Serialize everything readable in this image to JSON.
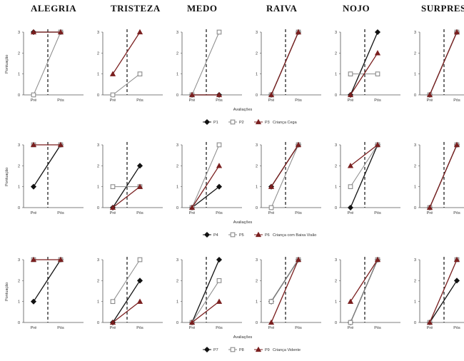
{
  "headers": [
    "ALEGRIA",
    "TRISTEZA",
    "MEDO",
    "RAIVA",
    "NOJO",
    "SURPRESA"
  ],
  "chart_data": {
    "type": "line",
    "categories": [
      "Pré",
      "Pós"
    ],
    "ylim": [
      0,
      3
    ],
    "yticks": [
      0,
      1,
      2,
      3
    ],
    "ylabel": "Pontuação",
    "xlabel": "Avaliações",
    "colors": {
      "black": "#111111",
      "gray": "#8a8a8a",
      "red": "#7a1f1f"
    },
    "rows": [
      {
        "legend": {
          "items": [
            "P1",
            "P2",
            "P3"
          ],
          "group": "Criança Cega"
        },
        "series": [
          {
            "name": "P1",
            "color": "black",
            "marker": "diamond"
          },
          {
            "name": "P2",
            "color": "gray",
            "marker": "square"
          },
          {
            "name": "P3",
            "color": "red",
            "marker": "triangle"
          }
        ],
        "panels": [
          {
            "emotion": "ALEGRIA",
            "values": [
              [
                3,
                3
              ],
              [
                0,
                3
              ],
              [
                3,
                3
              ]
            ]
          },
          {
            "emotion": "TRISTEZA",
            "values": [
              [
                null,
                null
              ],
              [
                0,
                1
              ],
              [
                1,
                3
              ]
            ]
          },
          {
            "emotion": "MEDO",
            "values": [
              [
                0,
                0
              ],
              [
                0,
                3
              ],
              [
                0,
                0
              ]
            ]
          },
          {
            "emotion": "RAIVA",
            "values": [
              [
                0,
                3
              ],
              [
                0,
                3
              ],
              [
                0,
                3
              ]
            ]
          },
          {
            "emotion": "NOJO",
            "values": [
              [
                0,
                3
              ],
              [
                1,
                1
              ],
              [
                0,
                2
              ]
            ]
          },
          {
            "emotion": "SURPRESA",
            "values": [
              [
                0,
                3
              ],
              [
                0,
                3
              ],
              [
                0,
                3
              ]
            ]
          }
        ]
      },
      {
        "legend": {
          "items": [
            "P4",
            "P5",
            "P6"
          ],
          "group": "Criança com Baixa Visão"
        },
        "series": [
          {
            "name": "P4",
            "color": "black",
            "marker": "diamond"
          },
          {
            "name": "P5",
            "color": "gray",
            "marker": "square"
          },
          {
            "name": "P6",
            "color": "red",
            "marker": "triangle"
          }
        ],
        "panels": [
          {
            "emotion": "ALEGRIA",
            "values": [
              [
                1,
                3
              ],
              [
                3,
                3
              ],
              [
                3,
                3
              ]
            ]
          },
          {
            "emotion": "TRISTEZA",
            "values": [
              [
                0,
                2
              ],
              [
                1,
                1
              ],
              [
                0,
                1
              ]
            ]
          },
          {
            "emotion": "MEDO",
            "values": [
              [
                0,
                1
              ],
              [
                0,
                3
              ],
              [
                0,
                2
              ]
            ]
          },
          {
            "emotion": "RAIVA",
            "values": [
              [
                1,
                3
              ],
              [
                0,
                3
              ],
              [
                1,
                3
              ]
            ]
          },
          {
            "emotion": "NOJO",
            "values": [
              [
                0,
                3
              ],
              [
                1,
                3
              ],
              [
                2,
                3
              ]
            ]
          },
          {
            "emotion": "SURPRESA",
            "values": [
              [
                0,
                3
              ],
              [
                0,
                3
              ],
              [
                0,
                3
              ]
            ]
          }
        ]
      },
      {
        "legend": {
          "items": [
            "P7",
            "P8",
            "P9"
          ],
          "group": "Criança Vidente"
        },
        "series": [
          {
            "name": "P7",
            "color": "black",
            "marker": "diamond"
          },
          {
            "name": "P8",
            "color": "gray",
            "marker": "square"
          },
          {
            "name": "P9",
            "color": "red",
            "marker": "triangle"
          }
        ],
        "panels": [
          {
            "emotion": "ALEGRIA",
            "values": [
              [
                1,
                3
              ],
              [
                3,
                3
              ],
              [
                3,
                3
              ]
            ]
          },
          {
            "emotion": "TRISTEZA",
            "values": [
              [
                0,
                2
              ],
              [
                1,
                3
              ],
              [
                0,
                1
              ]
            ]
          },
          {
            "emotion": "MEDO",
            "values": [
              [
                0,
                3
              ],
              [
                0,
                2
              ],
              [
                0,
                1
              ]
            ]
          },
          {
            "emotion": "RAIVA",
            "values": [
              [
                1,
                3
              ],
              [
                1,
                3
              ],
              [
                0,
                3
              ]
            ]
          },
          {
            "emotion": "NOJO",
            "values": [
              [
                0,
                3
              ],
              [
                0,
                3
              ],
              [
                1,
                3
              ]
            ]
          },
          {
            "emotion": "SURPRESA",
            "values": [
              [
                0,
                2
              ],
              [
                0,
                3
              ],
              [
                0,
                3
              ]
            ]
          }
        ]
      }
    ]
  }
}
